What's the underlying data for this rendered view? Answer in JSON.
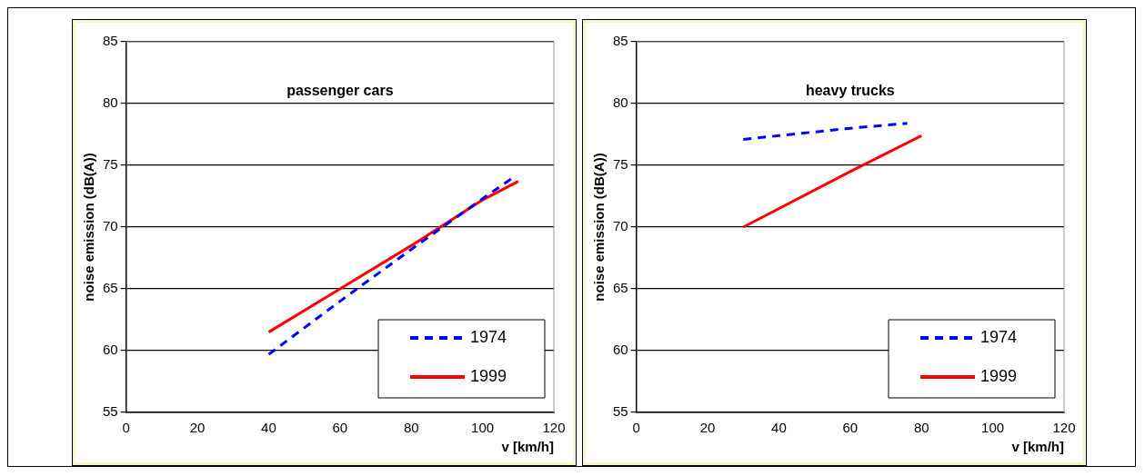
{
  "chart_data": [
    {
      "type": "line",
      "title": "passenger cars",
      "xlabel": "v [km/h]",
      "ylabel": "noise emission (dB(A))",
      "xlim": [
        0,
        120
      ],
      "xticks": [
        0,
        20,
        40,
        60,
        80,
        100,
        120
      ],
      "ylim": [
        55,
        85
      ],
      "yticks": [
        55,
        60,
        65,
        70,
        75,
        80,
        85
      ],
      "grid": "y",
      "legend": "bottom right",
      "marker": "none",
      "series": [
        {
          "name": "1974",
          "color": "#0000ff",
          "line_style": "dashed",
          "x": [
            40,
            60,
            80,
            100,
            108
          ],
          "values": [
            59.7,
            64,
            68.2,
            72.3,
            73.9
          ]
        },
        {
          "name": "1999",
          "color": "#ff0000",
          "line_style": "solid",
          "x": [
            40,
            60,
            80,
            100,
            110
          ],
          "values": [
            61.5,
            65,
            68.5,
            72.2,
            73.7
          ]
        }
      ]
    },
    {
      "type": "line",
      "title": "heavy trucks",
      "xlabel": "v [km/h]",
      "ylabel": "noise emission (dB(A))",
      "xlim": [
        0,
        120
      ],
      "xticks": [
        0,
        20,
        40,
        60,
        80,
        100,
        120
      ],
      "ylim": [
        55,
        85
      ],
      "yticks": [
        55,
        60,
        65,
        70,
        75,
        80,
        85
      ],
      "grid": "y",
      "legend": "bottom right",
      "marker": "none",
      "series": [
        {
          "name": "1974",
          "color": "#0000ff",
          "line_style": "dashed",
          "x": [
            30,
            40,
            60,
            76
          ],
          "values": [
            77.1,
            77.4,
            78,
            78.4
          ]
        },
        {
          "name": "1999",
          "color": "#ff0000",
          "line_style": "solid",
          "x": [
            30,
            60,
            80
          ],
          "values": [
            70,
            74.5,
            77.4
          ]
        }
      ]
    }
  ]
}
